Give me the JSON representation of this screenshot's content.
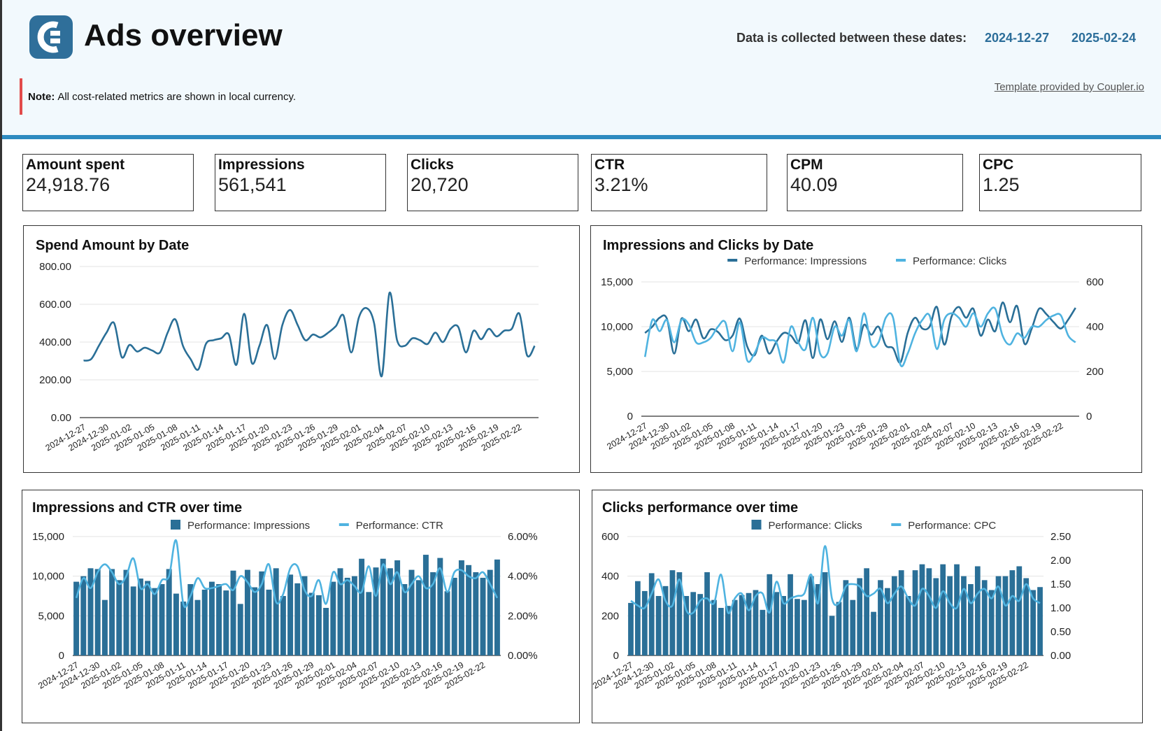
{
  "header": {
    "title": "Ads overview",
    "dates_label": "Data is collected between these dates:",
    "date_start": "2024-12-27",
    "date_end": "2025-02-24",
    "note_bold": "Note:",
    "note_text": "All cost-related metrics are shown in local currency.",
    "template_link": "Template provided by Coupler.io",
    "logo_icon": "coupler-logo-icon",
    "accent_color": "#2e8bc0",
    "note_color": "#e24b4b"
  },
  "kpis": [
    {
      "label": "Amount spent",
      "value": "24,918.76"
    },
    {
      "label": "Impressions",
      "value": "561,541"
    },
    {
      "label": "Clicks",
      "value": "20,720"
    },
    {
      "label": "CTR",
      "value": "3.21%"
    },
    {
      "label": "CPM",
      "value": "40.09"
    },
    {
      "label": "CPC",
      "value": "1.25"
    }
  ],
  "chart_data": [
    {
      "id": "spend",
      "type": "line",
      "title": "Spend Amount by Date",
      "x_start": "2024-12-27",
      "x_end": "2025-02-24",
      "x_tick_labels": [
        "2024-12-27",
        "2024-12-30",
        "2025-01-02",
        "2025-01-05",
        "2025-01-08",
        "2025-01-11",
        "2025-01-14",
        "2025-01-17",
        "2025-01-20",
        "2025-01-23",
        "2025-01-26",
        "2025-01-29",
        "2025-02-01",
        "2025-02-04",
        "2025-02-07",
        "2025-02-10",
        "2025-02-13",
        "2025-02-16",
        "2025-02-19",
        "2025-02-22"
      ],
      "y_ticks": [
        "0.00",
        "200.00",
        "400.00",
        "600.00",
        "800.00"
      ],
      "ylim": [
        0,
        800
      ],
      "grid": true,
      "series": [
        {
          "color": "#2a6f97",
          "values": [
            302,
            310,
            380,
            450,
            500,
            320,
            385,
            350,
            370,
            355,
            345,
            450,
            520,
            380,
            310,
            255,
            390,
            410,
            420,
            440,
            280,
            550,
            290,
            380,
            490,
            310,
            490,
            570,
            490,
            410,
            440,
            425,
            450,
            485,
            540,
            345,
            530,
            580,
            500,
            220,
            660,
            410,
            380,
            420,
            410,
            390,
            450,
            400,
            470,
            480,
            345,
            460,
            415,
            470,
            430,
            460,
            470,
            550,
            330,
            380
          ]
        }
      ]
    },
    {
      "id": "impr_clicks",
      "type": "line",
      "title": "Impressions and Clicks by Date",
      "x_start": "2024-12-27",
      "x_end": "2025-02-24",
      "x_tick_labels": [
        "2024-12-27",
        "2024-12-30",
        "2025-01-02",
        "2025-01-05",
        "2025-01-08",
        "2025-01-11",
        "2025-01-14",
        "2025-01-17",
        "2025-01-20",
        "2025-01-23",
        "2025-01-26",
        "2025-01-29",
        "2025-02-01",
        "2025-02-04",
        "2025-02-07",
        "2025-02-10",
        "2025-02-13",
        "2025-02-16",
        "2025-02-19",
        "2025-02-22"
      ],
      "y_left_ticks": [
        "0",
        "5,000",
        "10,000",
        "15,000"
      ],
      "y_right_ticks": [
        "0",
        "200",
        "400",
        "600"
      ],
      "ylim_left": [
        0,
        15000
      ],
      "ylim_right": [
        0,
        600
      ],
      "legend": [
        {
          "label": "Performance: Impressions",
          "color": "#2a6f97"
        },
        {
          "label": "Performance: Clicks",
          "color": "#4fb3e0"
        }
      ],
      "series": [
        {
          "name": "Performance: Impressions",
          "axis": "left",
          "color": "#2a6f97",
          "values": [
            9300,
            10000,
            11000,
            10900,
            7000,
            10900,
            9500,
            10800,
            8700,
            9700,
            9400,
            8500,
            9000,
            10900,
            7800,
            6800,
            9000,
            7000,
            8300,
            9300,
            9000,
            8200,
            10700,
            6500,
            10800,
            8600,
            10600,
            8300,
            11000,
            7500,
            10200,
            9100,
            10000,
            7900,
            7600,
            6000,
            9300,
            11000,
            9800,
            10000,
            12200,
            8000,
            11100,
            12200,
            11000,
            12000,
            9000,
            10800,
            9500,
            12700,
            10500,
            12300,
            8100,
            9800,
            12000,
            11400,
            10500,
            9800,
            10800,
            12100
          ]
        },
        {
          "name": "Performance: Clicks",
          "axis": "right",
          "color": "#4fb3e0",
          "values": [
            265,
            430,
            380,
            430,
            330,
            430,
            410,
            330,
            330,
            350,
            400,
            420,
            290,
            420,
            250,
            280,
            350,
            340,
            330,
            240,
            400,
            330,
            300,
            440,
            280,
            280,
            400,
            360,
            430,
            290,
            460,
            320,
            330,
            440,
            440,
            230,
            280,
            370,
            430,
            450,
            300,
            430,
            460,
            440,
            400,
            460,
            400,
            460,
            480,
            360,
            320,
            370,
            350,
            400,
            400,
            430,
            450,
            450,
            360,
            330
          ]
        }
      ]
    },
    {
      "id": "impr_ctr",
      "type": "bar",
      "title": "Impressions and CTR over time",
      "x_start": "2024-12-27",
      "x_end": "2025-02-24",
      "x_tick_labels": [
        "2024-12-27",
        "2024-12-30",
        "2025-01-02",
        "2025-01-05",
        "2025-01-08",
        "2025-01-11",
        "2025-01-14",
        "2025-01-17",
        "2025-01-20",
        "2025-01-23",
        "2025-01-26",
        "2025-01-29",
        "2025-02-01",
        "2025-02-04",
        "2025-02-07",
        "2025-02-10",
        "2025-02-13",
        "2025-02-16",
        "2025-02-19",
        "2025-02-22"
      ],
      "y_left_ticks": [
        "0",
        "5,000",
        "10,000",
        "15,000"
      ],
      "y_right_ticks": [
        "0.00%",
        "2.00%",
        "4.00%",
        "6.00%"
      ],
      "ylim_left": [
        0,
        15000
      ],
      "ylim_right": [
        0,
        6
      ],
      "legend": [
        {
          "label": "Performance: Impressions",
          "color": "#2a6f97",
          "shape": "box"
        },
        {
          "label": "Performance: CTR",
          "color": "#4fb3e0",
          "shape": "line"
        }
      ],
      "series": [
        {
          "name": "Performance: Impressions",
          "axis": "left",
          "kind": "bar",
          "color": "#2a6f97",
          "values": [
            9300,
            10000,
            11000,
            10900,
            7000,
            10900,
            9500,
            10800,
            8700,
            9700,
            9400,
            8500,
            9000,
            10900,
            7800,
            6800,
            9000,
            7000,
            8300,
            9300,
            9000,
            8200,
            10700,
            6500,
            10800,
            8600,
            10600,
            8300,
            11000,
            7500,
            10200,
            9100,
            10000,
            7900,
            7600,
            6000,
            9300,
            11000,
            9800,
            10000,
            12200,
            8000,
            11100,
            12200,
            11000,
            12000,
            9000,
            10800,
            9500,
            12700,
            10500,
            12300,
            8100,
            9800,
            12000,
            11400,
            10500,
            9800,
            10800,
            12100
          ]
        },
        {
          "name": "Performance: CTR",
          "axis": "right",
          "kind": "line",
          "color": "#4fb3e0",
          "values": [
            2.9,
            3.9,
            3.4,
            4.2,
            4.6,
            4.2,
            3.6,
            4.0,
            4.9,
            3.4,
            3.6,
            3.1,
            3.8,
            4.0,
            5.8,
            2.6,
            3.0,
            3.9,
            3.4,
            3.4,
            3.5,
            3.6,
            3.3,
            4.0,
            3.7,
            3.2,
            3.6,
            4.6,
            2.7,
            3.1,
            4.4,
            4.5,
            3.3,
            3.0,
            3.8,
            2.6,
            4.2,
            3.6,
            3.8,
            3.5,
            3.2,
            4.5,
            3.0,
            4.6,
            3.6,
            4.2,
            3.2,
            3.6,
            4.0,
            3.4,
            3.6,
            4.4,
            3.2,
            4.2,
            4.3,
            4.0,
            3.9,
            4.2,
            3.6,
            2.9
          ]
        }
      ]
    },
    {
      "id": "clicks_cpc",
      "type": "bar",
      "title": "Clicks performance over time",
      "x_start": "2024-12-27",
      "x_end": "2025-02-24",
      "x_tick_labels": [
        "2024-12-27",
        "2024-12-30",
        "2025-01-02",
        "2025-01-05",
        "2025-01-08",
        "2025-01-11",
        "2025-01-14",
        "2025-01-17",
        "2025-01-20",
        "2025-01-23",
        "2025-01-26",
        "2025-01-29",
        "2025-02-01",
        "2025-02-04",
        "2025-02-07",
        "2025-02-10",
        "2025-02-13",
        "2025-02-16",
        "2025-02-19",
        "2025-02-22"
      ],
      "y_left_ticks": [
        "0",
        "200",
        "400",
        "600"
      ],
      "y_right_ticks": [
        "0.00",
        "0.50",
        "1.00",
        "1.50",
        "2.00",
        "2.50"
      ],
      "ylim_left": [
        0,
        600
      ],
      "ylim_right": [
        0,
        2.5
      ],
      "legend": [
        {
          "label": "Performance: Clicks",
          "color": "#2a6f97",
          "shape": "box"
        },
        {
          "label": "Performance: CPC",
          "color": "#4fb3e0",
          "shape": "line"
        }
      ],
      "series": [
        {
          "name": "Performance: Clicks",
          "axis": "left",
          "kind": "bar",
          "color": "#2a6f97",
          "values": [
            265,
            375,
            325,
            415,
            300,
            350,
            430,
            420,
            300,
            320,
            310,
            420,
            280,
            240,
            250,
            280,
            305,
            315,
            330,
            230,
            410,
            320,
            300,
            410,
            285,
            280,
            400,
            360,
            420,
            200,
            270,
            380,
            280,
            390,
            440,
            220,
            380,
            340,
            400,
            430,
            300,
            430,
            460,
            440,
            390,
            460,
            400,
            460,
            400,
            360,
            450,
            380,
            330,
            400,
            400,
            430,
            450,
            390,
            330,
            345
          ]
        },
        {
          "name": "Performance: CPC",
          "axis": "right",
          "kind": "line",
          "color": "#4fb3e0",
          "values": [
            1.15,
            1.05,
            1.0,
            1.3,
            1.6,
            1.15,
            1.05,
            1.6,
            0.95,
            0.9,
            1.15,
            1.2,
            1.1,
            1.7,
            0.9,
            1.2,
            1.3,
            0.95,
            1.25,
            1.3,
            0.9,
            1.55,
            1.1,
            1.2,
            1.25,
            1.3,
            1.7,
            1.1,
            2.3,
            1.2,
            1.1,
            1.45,
            1.5,
            1.45,
            1.25,
            1.3,
            1.4,
            1.1,
            1.3,
            1.45,
            1.2,
            1.05,
            1.4,
            1.25,
            1.0,
            1.35,
            1.1,
            1.0,
            1.4,
            1.1,
            1.3,
            1.4,
            1.2,
            1.45,
            1.05,
            1.25,
            1.15,
            1.5,
            1.2,
            1.1
          ]
        }
      ]
    }
  ]
}
